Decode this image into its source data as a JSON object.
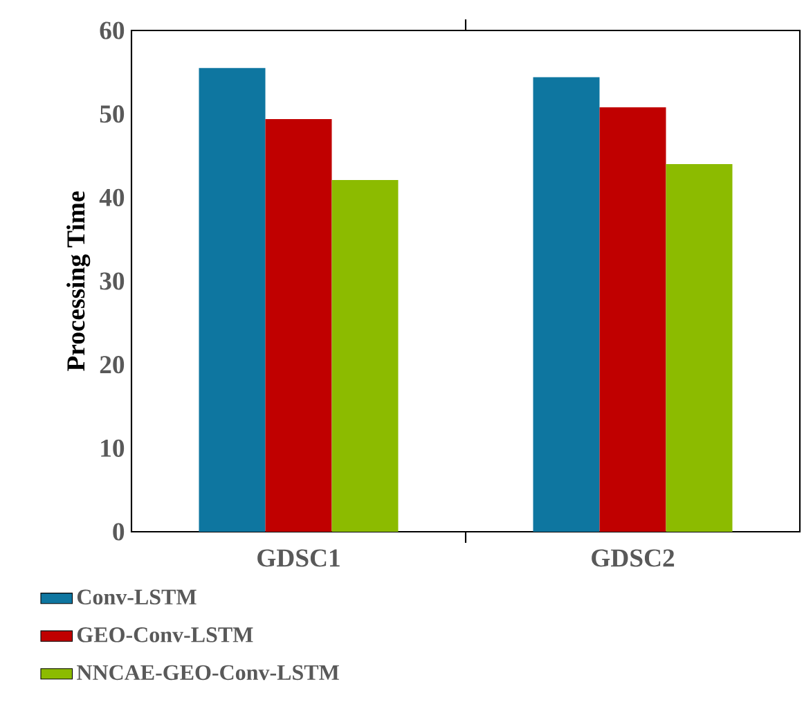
{
  "chart_data": {
    "type": "bar",
    "ylabel": "Processing Time",
    "categories": [
      "GDSC1",
      "GDSC2"
    ],
    "series": [
      {
        "name": "Conv-LSTM",
        "color": "#0e76a0",
        "values": [
          55.5,
          54.4
        ]
      },
      {
        "name": "GEO-Conv-LSTM",
        "color": "#c00000",
        "values": [
          49.4,
          50.8
        ]
      },
      {
        "name": "NNCAE-GEO-Conv-LSTM",
        "color": "#8cbb00",
        "values": [
          42.1,
          44.0
        ]
      }
    ],
    "ylim": [
      0,
      60
    ],
    "yticks": [
      0,
      10,
      20,
      30,
      40,
      50,
      60
    ],
    "grid": false,
    "legend": "bottom"
  }
}
